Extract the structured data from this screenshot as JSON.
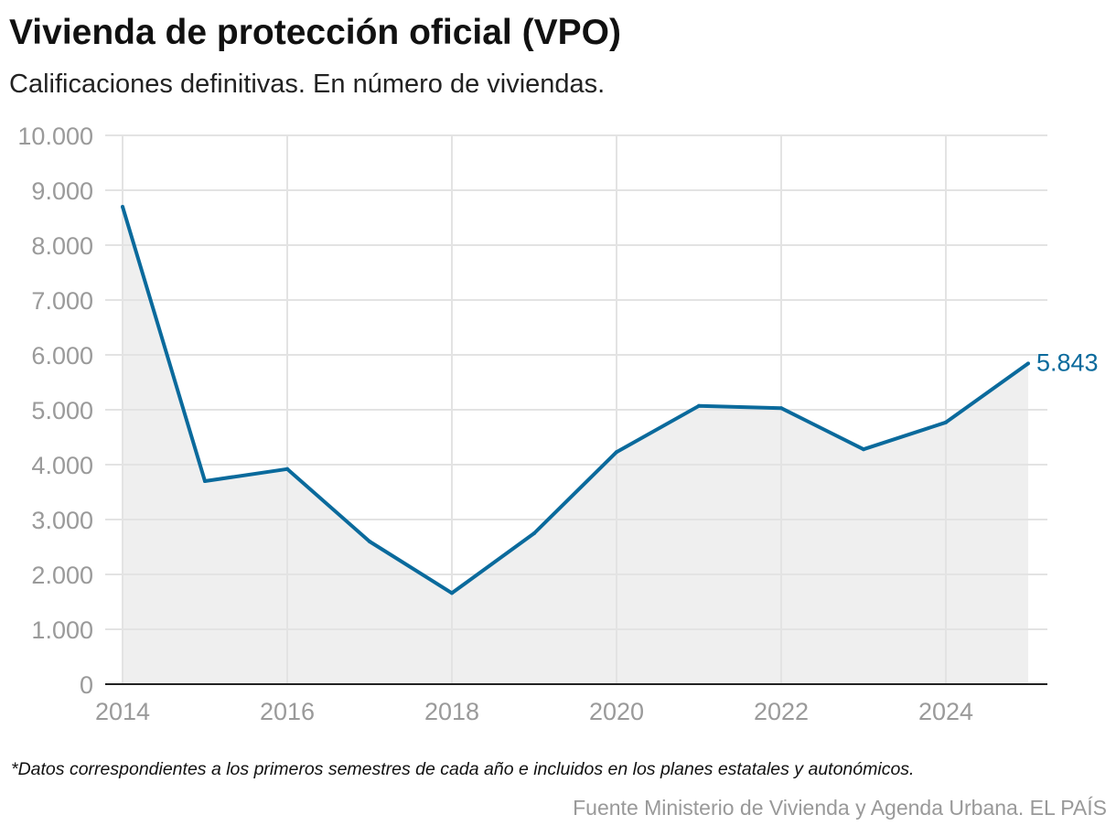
{
  "title": "Vivienda de protección oficial (VPO)",
  "subtitle": "Calificaciones definitivas. En número de viviendas.",
  "note": "*Datos correspondientes a los primeros semestres de cada año e incluidos en los planes estatales y autonómicos.",
  "source": "Fuente Ministerio de Vivienda y Agenda Urbana. EL PAÍS",
  "chart_data": {
    "type": "area",
    "title": "Vivienda de protección oficial (VPO)",
    "x": [
      2014,
      2015,
      2016,
      2017,
      2018,
      2019,
      2020,
      2021,
      2022,
      2023,
      2024,
      2025
    ],
    "values": [
      8700,
      3700,
      3920,
      2600,
      1660,
      2750,
      4230,
      5070,
      5030,
      4280,
      4770,
      5843
    ],
    "ylim": [
      0,
      10000
    ],
    "yticks": [
      "0",
      "1.000",
      "2.000",
      "3.000",
      "4.000",
      "5.000",
      "6.000",
      "7.000",
      "8.000",
      "9.000",
      "10.000"
    ],
    "xticks": [
      "2014",
      "2016",
      "2018",
      "2020",
      "2022",
      "2024"
    ],
    "end_label": "5.843",
    "grid": true,
    "line_color": "#0a6a9c",
    "fill_color": "#efefef"
  }
}
